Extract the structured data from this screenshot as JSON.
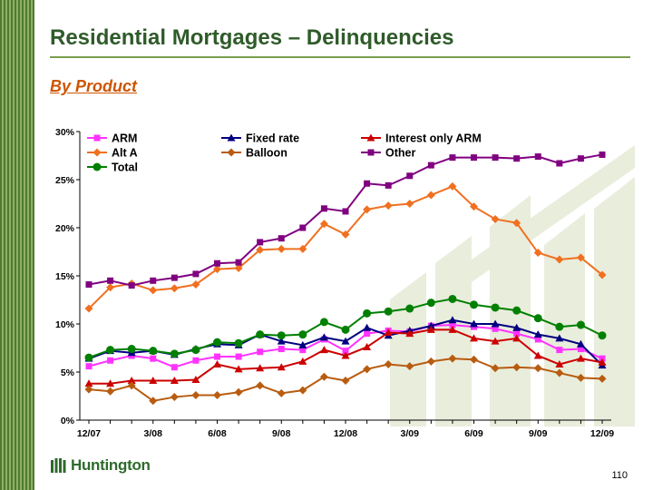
{
  "slide": {
    "title": "Residential Mortgages – Delinquencies",
    "subtitle": "By Product",
    "page_number": "110",
    "logo_text": "Huntington"
  },
  "colors": {
    "title": "#2f5b2a",
    "subtitle": "#cc5500",
    "brand_green": "#2e6a2c",
    "watermark": "#e9eddc"
  },
  "chart_data": {
    "type": "line",
    "x_tick_labels": [
      "12/07",
      "3/08",
      "6/08",
      "9/08",
      "12/08",
      "3/09",
      "6/09",
      "9/09",
      "12/09"
    ],
    "x_tick_indices": [
      0,
      3,
      6,
      9,
      12,
      15,
      18,
      21,
      24
    ],
    "ylim": [
      0,
      30
    ],
    "y_ticks": [
      0,
      5,
      10,
      15,
      20,
      25,
      30
    ],
    "y_tick_labels": [
      "0%",
      "5%",
      "10%",
      "15%",
      "20%",
      "25%",
      "30%"
    ],
    "grid": false,
    "legend_position": "top-left",
    "series": [
      {
        "name": "ARM",
        "color": "#ff33ff",
        "marker": "square",
        "values": [
          5.6,
          6.2,
          6.7,
          6.4,
          5.5,
          6.2,
          6.6,
          6.6,
          7.1,
          7.4,
          7.3,
          8.4,
          7.2,
          9.0,
          9.3,
          9.2,
          9.8,
          9.9,
          9.7,
          9.5,
          9.0,
          8.4,
          7.3,
          7.4,
          6.4
        ]
      },
      {
        "name": "Fixed rate",
        "color": "#000080",
        "marker": "triangle",
        "values": [
          6.4,
          7.2,
          7.0,
          7.2,
          6.8,
          7.4,
          7.9,
          7.8,
          8.9,
          8.2,
          7.8,
          8.6,
          8.2,
          9.6,
          8.8,
          9.3,
          9.8,
          10.4,
          10.0,
          10.0,
          9.6,
          8.9,
          8.5,
          7.9,
          5.7
        ]
      },
      {
        "name": "Interest only ARM",
        "color": "#cc0000",
        "marker": "triangle",
        "values": [
          3.8,
          3.8,
          4.1,
          4.1,
          4.1,
          4.2,
          5.8,
          5.3,
          5.4,
          5.5,
          6.1,
          7.3,
          6.7,
          7.6,
          9.1,
          9.0,
          9.4,
          9.4,
          8.5,
          8.2,
          8.5,
          6.7,
          5.8,
          6.4,
          6.0
        ]
      },
      {
        "name": "Alt A",
        "color": "#f07020",
        "marker": "diamond",
        "values": [
          11.6,
          13.8,
          14.2,
          13.5,
          13.7,
          14.1,
          15.7,
          15.8,
          17.7,
          17.8,
          17.8,
          20.4,
          19.3,
          21.9,
          22.3,
          22.5,
          23.4,
          24.3,
          22.2,
          20.9,
          20.5,
          17.4,
          16.7,
          16.9,
          15.1
        ]
      },
      {
        "name": "Balloon",
        "color": "#b85c10",
        "marker": "diamond",
        "values": [
          3.2,
          3.0,
          3.6,
          2.0,
          2.4,
          2.6,
          2.6,
          2.9,
          3.6,
          2.8,
          3.1,
          4.5,
          4.1,
          5.3,
          5.8,
          5.6,
          6.1,
          6.4,
          6.3,
          5.4,
          5.5,
          5.4,
          4.9,
          4.4,
          4.3
        ]
      },
      {
        "name": "Other",
        "color": "#800080",
        "marker": "square",
        "values": [
          14.1,
          14.5,
          14.0,
          14.5,
          14.8,
          15.2,
          16.3,
          16.4,
          18.5,
          18.9,
          20.0,
          22.0,
          21.7,
          24.6,
          24.4,
          25.4,
          26.5,
          27.3,
          27.3,
          27.3,
          27.2,
          27.4,
          26.7,
          27.2,
          27.6
        ]
      },
      {
        "name": "Total",
        "color": "#008000",
        "marker": "circle",
        "values": [
          6.5,
          7.3,
          7.4,
          7.2,
          6.9,
          7.3,
          8.1,
          8.0,
          8.9,
          8.8,
          8.9,
          10.2,
          9.4,
          11.1,
          11.3,
          11.6,
          12.2,
          12.6,
          12.0,
          11.7,
          11.4,
          10.6,
          9.7,
          9.9,
          8.8
        ]
      }
    ]
  }
}
